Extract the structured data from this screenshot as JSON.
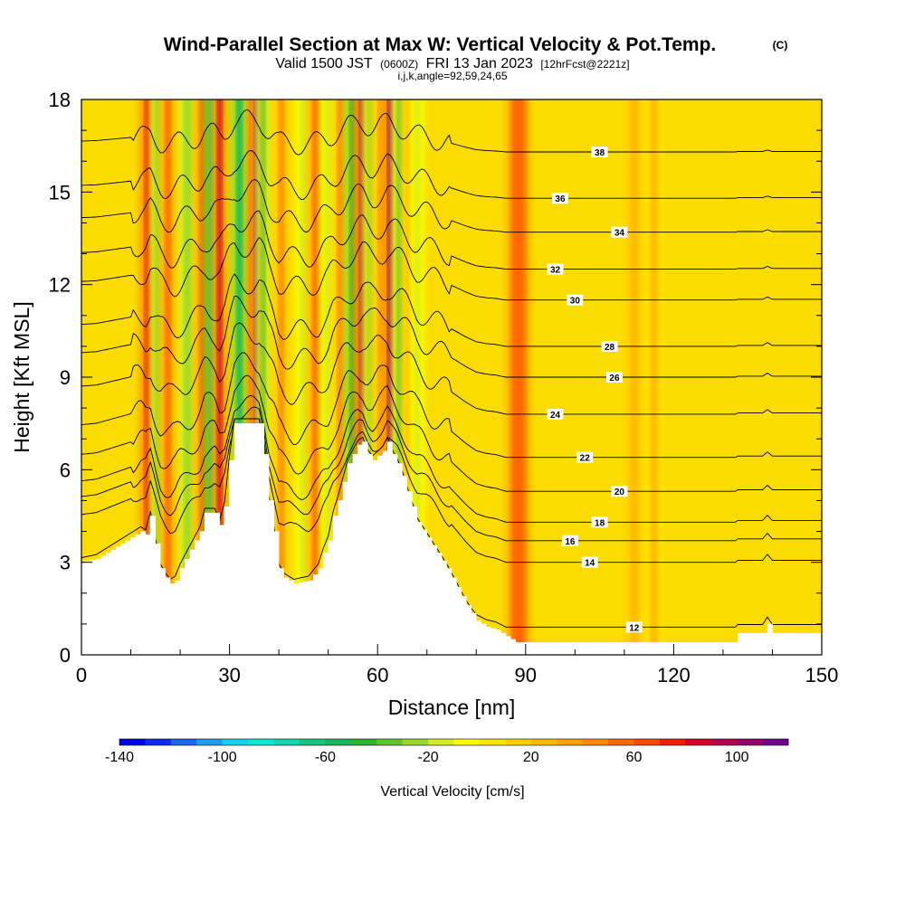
{
  "header": {
    "title_main": "Wind-Parallel Section at Max W: Vertical Velocity & Pot.Temp.",
    "title_c": "(C)",
    "valid_a": "Valid 1500 JST",
    "valid_b": "(0600Z)",
    "valid_c": "FRI 13 Jan 2023",
    "valid_d": "[12hrFcst@2221z]",
    "params": "i,j,k,angle=92,59,24,65"
  },
  "chart_data": {
    "type": "heatmap",
    "xlabel": "Distance [nm]",
    "ylabel": "Height [Kft MSL]",
    "xlim": [
      0,
      150
    ],
    "ylim": [
      0,
      18
    ],
    "x_ticks": [
      0,
      30,
      60,
      90,
      120,
      150
    ],
    "y_ticks": [
      0,
      3,
      6,
      9,
      12,
      15,
      18
    ],
    "x_tick_labels": [
      "0",
      "30",
      "60",
      "90",
      "120",
      "150"
    ],
    "y_tick_labels": [
      "0",
      "3",
      "6",
      "9",
      "12",
      "15",
      "18"
    ],
    "terrain_top": [
      [
        0,
        3.0
      ],
      [
        3,
        3.1
      ],
      [
        6,
        3.4
      ],
      [
        9,
        3.7
      ],
      [
        12,
        4.0
      ],
      [
        13,
        3.9
      ],
      [
        14,
        4.5
      ],
      [
        15,
        3.6
      ],
      [
        16,
        2.8
      ],
      [
        17,
        2.5
      ],
      [
        18,
        2.3
      ],
      [
        19,
        2.4
      ],
      [
        20,
        2.8
      ],
      [
        22,
        3.4
      ],
      [
        24,
        4.0
      ],
      [
        25,
        4.6
      ],
      [
        27,
        4.6
      ],
      [
        28,
        4.2
      ],
      [
        29,
        4.8
      ],
      [
        30,
        6.3
      ],
      [
        31,
        7.5
      ],
      [
        34,
        7.5
      ],
      [
        36,
        7.5
      ],
      [
        37,
        6.5
      ],
      [
        38,
        5.0
      ],
      [
        39,
        4.0
      ],
      [
        40,
        2.8
      ],
      [
        41,
        2.5
      ],
      [
        43,
        2.3
      ],
      [
        46,
        2.4
      ],
      [
        48,
        2.8
      ],
      [
        49,
        3.3
      ],
      [
        50,
        3.7
      ],
      [
        51,
        4.5
      ],
      [
        52,
        5.0
      ],
      [
        53,
        5.6
      ],
      [
        54,
        6.2
      ],
      [
        55,
        6.5
      ],
      [
        56,
        6.8
      ],
      [
        57,
        6.9
      ],
      [
        58,
        6.5
      ],
      [
        59,
        6.3
      ],
      [
        61,
        6.6
      ],
      [
        62,
        6.9
      ],
      [
        63,
        6.5
      ],
      [
        64,
        6.2
      ],
      [
        65,
        5.8
      ],
      [
        66,
        5.3
      ],
      [
        67,
        4.8
      ],
      [
        68,
        4.3
      ],
      [
        70,
        3.8
      ],
      [
        72,
        3.3
      ],
      [
        74,
        2.8
      ],
      [
        76,
        2.2
      ],
      [
        78,
        1.6
      ],
      [
        80,
        1.1
      ],
      [
        82,
        0.9
      ],
      [
        84,
        0.8
      ],
      [
        86,
        0.6
      ],
      [
        88,
        0.4
      ],
      [
        90,
        0.4
      ],
      [
        95,
        0.4
      ],
      [
        100,
        0.4
      ],
      [
        110,
        0.4
      ],
      [
        120,
        0.4
      ],
      [
        132,
        0.4
      ],
      [
        133,
        0.7
      ],
      [
        138,
        0.7
      ],
      [
        139,
        1.0
      ],
      [
        140,
        0.7
      ],
      [
        150,
        0.7
      ]
    ],
    "vertical_velocity_bands": [
      {
        "x": 13.5,
        "w": 1.4,
        "value": 70
      },
      {
        "x": 15.5,
        "w": 1.2,
        "value": -30
      },
      {
        "x": 17.5,
        "w": 1.2,
        "value": 50
      },
      {
        "x": 21.5,
        "w": 1.4,
        "value": -30
      },
      {
        "x": 24.5,
        "w": 1.3,
        "value": 50
      },
      {
        "x": 26.5,
        "w": 1.0,
        "value": -70
      },
      {
        "x": 28.0,
        "w": 1.0,
        "value": 80
      },
      {
        "x": 32.0,
        "w": 1.2,
        "value": -60
      },
      {
        "x": 35.5,
        "w": 1.0,
        "value": 110
      },
      {
        "x": 36.8,
        "w": 0.9,
        "value": -40
      },
      {
        "x": 40.5,
        "w": 1.2,
        "value": 40
      },
      {
        "x": 45.0,
        "w": 1.3,
        "value": -20
      },
      {
        "x": 47.5,
        "w": 1.4,
        "value": 55
      },
      {
        "x": 50.0,
        "w": 1.2,
        "value": -20
      },
      {
        "x": 52.5,
        "w": 1.3,
        "value": 40
      },
      {
        "x": 55.0,
        "w": 1.2,
        "value": -50
      },
      {
        "x": 56.8,
        "w": 1.0,
        "value": 90
      },
      {
        "x": 58.6,
        "w": 1.1,
        "value": -30
      },
      {
        "x": 60.5,
        "w": 1.0,
        "value": 30
      },
      {
        "x": 62.5,
        "w": 1.0,
        "value": 105
      },
      {
        "x": 64.5,
        "w": 1.0,
        "value": -40
      },
      {
        "x": 66.5,
        "w": 1.0,
        "value": 30
      },
      {
        "x": 68.0,
        "w": 1.0,
        "value": -20
      },
      {
        "x": 88.5,
        "w": 3.0,
        "value": 55
      },
      {
        "x": 112.0,
        "w": 1.5,
        "value": 25
      },
      {
        "x": 116.0,
        "w": 1.5,
        "value": 20
      }
    ],
    "isentropes": [
      {
        "value": 12,
        "y": 0.9,
        "label_x": 112
      },
      {
        "value": 14,
        "y": 3.0,
        "label_x": 103
      },
      {
        "value": 16,
        "y": 3.7,
        "label_x": 99
      },
      {
        "value": 18,
        "y": 4.3,
        "label_x": 105
      },
      {
        "value": 20,
        "y": 5.3,
        "label_x": 109
      },
      {
        "value": 22,
        "y": 6.4,
        "label_x": 102
      },
      {
        "value": 24,
        "y": 7.8,
        "label_x": 96
      },
      {
        "value": 26,
        "y": 9.0,
        "label_x": 108
      },
      {
        "value": 28,
        "y": 10.0,
        "label_x": 107
      },
      {
        "value": 30,
        "y": 11.5,
        "label_x": 100
      },
      {
        "value": 32,
        "y": 12.5,
        "label_x": 96
      },
      {
        "value": 34,
        "y": 13.7,
        "label_x": 109
      },
      {
        "value": 36,
        "y": 14.8,
        "label_x": 97
      },
      {
        "value": 38,
        "y": 16.3,
        "label_x": 105
      }
    ],
    "colorbar": {
      "label": "Vertical Velocity [cm/s]",
      "min": -140,
      "max": 120,
      "step": 10,
      "ticks": [
        -140,
        -100,
        -60,
        -20,
        20,
        60,
        100
      ],
      "tick_labels": [
        "-140",
        "-100",
        "-60",
        "-20",
        "20",
        "60",
        "100"
      ],
      "colors": [
        "#0000ee",
        "#0a2cf0",
        "#1866f0",
        "#1e9cf0",
        "#12d2ee",
        "#0ee8d8",
        "#10d8a8",
        "#12c880",
        "#14b858",
        "#2cb42c",
        "#5ec428",
        "#9ad828",
        "#d4ec20",
        "#fafa00",
        "#ffe400",
        "#ffd000",
        "#ffb800",
        "#ffa000",
        "#ff8800",
        "#ff6800",
        "#ff4800",
        "#f01c00",
        "#d8002a",
        "#b8004c",
        "#98006c",
        "#700090"
      ]
    }
  }
}
